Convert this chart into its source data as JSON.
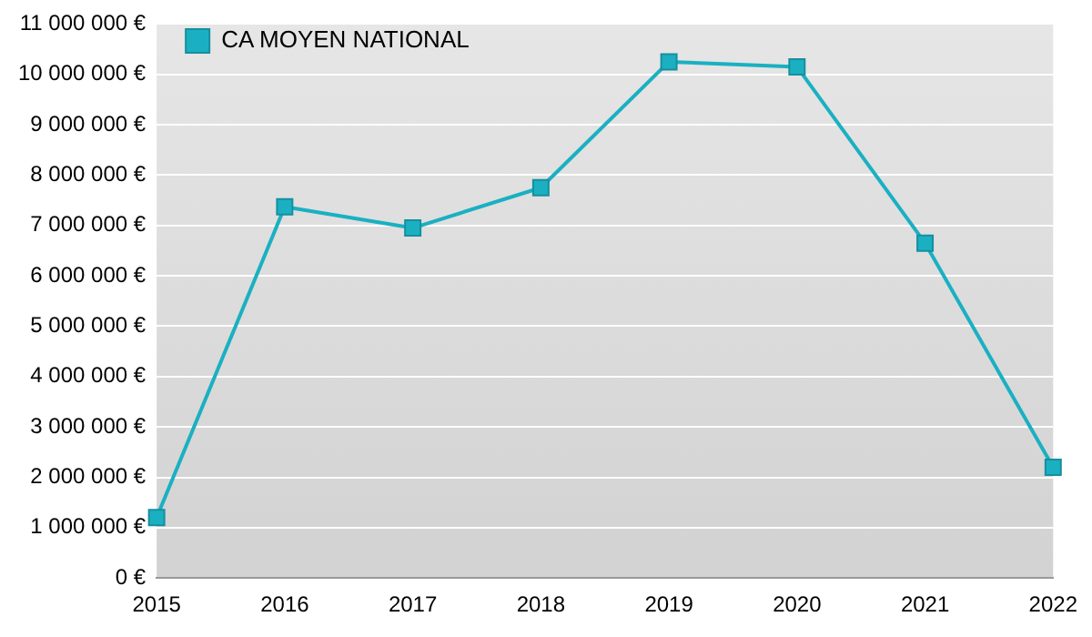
{
  "chart_data": {
    "type": "line",
    "categories": [
      "2015",
      "2016",
      "2017",
      "2018",
      "2019",
      "2020",
      "2021",
      "2022"
    ],
    "series": [
      {
        "name": "CA MOYEN NATIONAL",
        "color": "#1ab0c2",
        "values": [
          1200000,
          7370000,
          6950000,
          7750000,
          10250000,
          10150000,
          6650000,
          2200000
        ]
      }
    ],
    "ylim": [
      0,
      11000000
    ],
    "yticks": [
      {
        "value": 0,
        "label": "0 €"
      },
      {
        "value": 1000000,
        "label": "1 000 000 €"
      },
      {
        "value": 2000000,
        "label": "2 000 000 €"
      },
      {
        "value": 3000000,
        "label": "3 000 000 €"
      },
      {
        "value": 4000000,
        "label": "4 000 000 €"
      },
      {
        "value": 5000000,
        "label": "5 000 000 €"
      },
      {
        "value": 6000000,
        "label": "6 000 000 €"
      },
      {
        "value": 7000000,
        "label": "7 000 000 €"
      },
      {
        "value": 8000000,
        "label": "8 000 000 €"
      },
      {
        "value": 9000000,
        "label": "9 000 000 €"
      },
      {
        "value": 10000000,
        "label": "10 000 000 €"
      },
      {
        "value": 11000000,
        "label": "11 000 000 €"
      }
    ],
    "grid": "y",
    "legend": "top left",
    "marker": "square",
    "line_style": "solid"
  }
}
